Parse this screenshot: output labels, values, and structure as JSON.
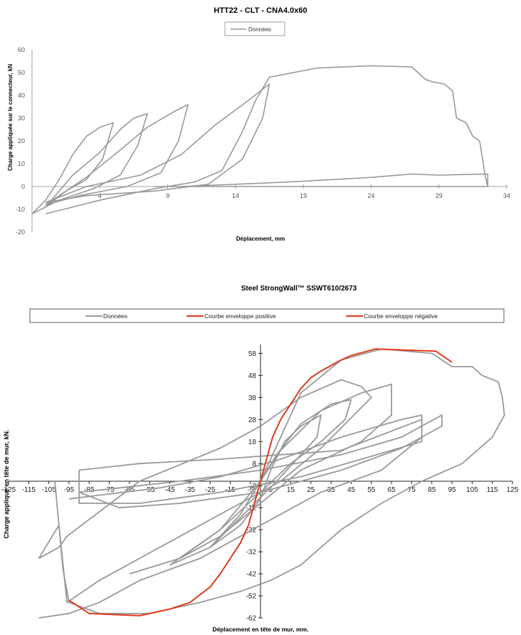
{
  "chart_data": [
    {
      "type": "line",
      "title": "HTT22 - CLT - CNA4.0x60",
      "xlabel": "Déplacement, mm",
      "ylabel": "Charge appliquée sur le connecteur, kN",
      "xlim": [
        -1,
        34
      ],
      "ylim": [
        -20,
        60
      ],
      "x_ticks": [
        4,
        9,
        14,
        19,
        24,
        29,
        34
      ],
      "x_tick_labels": [
        "4",
        "9",
        "14",
        "19",
        "24",
        "29",
        "34"
      ],
      "y_ticks": [
        -20,
        -10,
        0,
        10,
        20,
        30,
        40,
        50,
        60
      ],
      "y_tick_labels": [
        "-20",
        "-10",
        "0",
        "10",
        "20",
        "30",
        "40",
        "50",
        "60"
      ],
      "legend": "top-center",
      "series": [
        {
          "name": "Données",
          "color": "#999999",
          "loops": [
            [
              [
                -1,
                -12
              ],
              [
                0,
                -6
              ],
              [
                1,
                3
              ],
              [
                2,
                14
              ],
              [
                3,
                22
              ],
              [
                4,
                26
              ],
              [
                5,
                28
              ],
              [
                4.2,
                12
              ],
              [
                3,
                3
              ],
              [
                1.5,
                -2
              ],
              [
                0,
                -9
              ],
              [
                -1,
                -12
              ]
            ],
            [
              [
                0,
                -9
              ],
              [
                2,
                5
              ],
              [
                4,
                15
              ],
              [
                5.5,
                25
              ],
              [
                6.5,
                30
              ],
              [
                7.5,
                32
              ],
              [
                6.8,
                18
              ],
              [
                5.5,
                5
              ],
              [
                3.5,
                -1
              ],
              [
                1,
                -6
              ],
              [
                0,
                -9
              ]
            ],
            [
              [
                0,
                -8
              ],
              [
                3,
                4
              ],
              [
                5.5,
                16
              ],
              [
                7.5,
                26
              ],
              [
                9.5,
                33
              ],
              [
                10.5,
                36
              ],
              [
                9.8,
                20
              ],
              [
                8.5,
                6
              ],
              [
                6,
                0
              ],
              [
                2.5,
                -4
              ],
              [
                0,
                -8
              ]
            ],
            [
              [
                0,
                -7
              ],
              [
                3,
                0
              ],
              [
                7,
                5
              ],
              [
                10,
                14
              ],
              [
                12.5,
                27
              ],
              [
                15,
                38
              ],
              [
                16.5,
                45
              ],
              [
                16,
                30
              ],
              [
                14.5,
                12
              ],
              [
                12,
                1
              ],
              [
                8,
                -2
              ],
              [
                3,
                -4
              ],
              [
                0,
                -7
              ]
            ],
            [
              [
                0,
                -12
              ],
              [
                4,
                -6
              ],
              [
                8,
                -1
              ],
              [
                11,
                2
              ],
              [
                13,
                7
              ],
              [
                14.5,
                24
              ],
              [
                15.5,
                38
              ],
              [
                16.5,
                48
              ],
              [
                20,
                52
              ],
              [
                24,
                53
              ],
              [
                27,
                52.5
              ],
              [
                28,
                47
              ],
              [
                28.5,
                46
              ],
              [
                29.4,
                45
              ],
              [
                30,
                42
              ],
              [
                30.3,
                30
              ],
              [
                31,
                28
              ],
              [
                31.5,
                22
              ],
              [
                32,
                20
              ],
              [
                32.4,
                5
              ],
              [
                32.6,
                0
              ],
              [
                29,
                0
              ],
              [
                20,
                0
              ],
              [
                8,
                0
              ]
            ],
            [
              [
                10,
                0
              ],
              [
                18,
                2
              ],
              [
                24,
                4
              ],
              [
                27,
                5.5
              ],
              [
                29,
                5
              ],
              [
                32.6,
                5.5
              ],
              [
                32.6,
                0
              ]
            ]
          ]
        }
      ]
    },
    {
      "type": "line",
      "title": "Steel StrongWall™ SSWT610/2673",
      "xlabel": "Déplacement en tête de mur, mm.",
      "ylabel": "Charge appliqué en tête de mur, kN.",
      "xlim": [
        -125,
        125
      ],
      "ylim": [
        -62,
        62
      ],
      "x_ticks": [
        -125,
        -115,
        -105,
        -95,
        -85,
        -75,
        -65,
        -55,
        -45,
        -35,
        -25,
        -15,
        -5,
        5,
        15,
        25,
        35,
        45,
        55,
        65,
        75,
        85,
        95,
        105,
        115,
        125
      ],
      "x_tick_labels": [
        "-125",
        "-115",
        "-105",
        "-95",
        "-85",
        "-75",
        "-65",
        "-55",
        "-45",
        "-35",
        "-25",
        "-15",
        "-5",
        "5",
        "15",
        "25",
        "35",
        "45",
        "55",
        "65",
        "75",
        "85",
        "95",
        "105",
        "115",
        "125"
      ],
      "y_ticks": [
        58,
        48,
        38,
        28,
        18,
        8,
        -2,
        -12,
        -22,
        -32,
        -42,
        -52,
        -62
      ],
      "y_tick_labels": [
        "58",
        "48",
        "38",
        "28",
        "18",
        "8",
        "-2",
        "-12",
        "-22",
        "-32",
        "-42",
        "-52",
        "-62"
      ],
      "legend": "top",
      "series": [
        {
          "name": "Données",
          "color": "#999999",
          "loops": [
            [
              [
                -110,
                -35
              ],
              [
                -100,
                -30
              ],
              [
                -96,
                -25
              ],
              [
                -60,
                0
              ],
              [
                -20,
                15
              ],
              [
                0,
                25
              ],
              [
                20,
                38
              ],
              [
                40,
                46
              ],
              [
                50,
                43
              ],
              [
                55,
                38
              ],
              [
                30,
                15
              ],
              [
                10,
                0
              ],
              [
                -10,
                -10
              ],
              [
                -40,
                -25
              ],
              [
                -80,
                -45
              ],
              [
                -96,
                -55
              ],
              [
                -100,
                -20
              ],
              [
                -110,
                -35
              ]
            ],
            [
              [
                -95,
                -8
              ],
              [
                -50,
                -3
              ],
              [
                -20,
                2
              ],
              [
                10,
                10
              ],
              [
                40,
                20
              ],
              [
                70,
                28
              ],
              [
                80,
                30
              ],
              [
                80,
                20
              ],
              [
                60,
                5
              ],
              [
                30,
                -5
              ],
              [
                0,
                -20
              ],
              [
                -30,
                -35
              ],
              [
                -60,
                -45
              ],
              [
                -80,
                -55
              ],
              [
                -95,
                -60
              ],
              [
                -110,
                -62
              ]
            ],
            [
              [
                -65,
                -42
              ],
              [
                -40,
                -35
              ],
              [
                -20,
                -22
              ],
              [
                0,
                0
              ],
              [
                10,
                14
              ],
              [
                30,
                32
              ],
              [
                50,
                40
              ],
              [
                65,
                44
              ],
              [
                65,
                30
              ],
              [
                50,
                18
              ],
              [
                20,
                5
              ],
              [
                0,
                -10
              ],
              [
                -20,
                -25
              ],
              [
                -40,
                -35
              ],
              [
                -65,
                -42
              ]
            ],
            [
              [
                -45,
                -38
              ],
              [
                -25,
                -30
              ],
              [
                -10,
                -15
              ],
              [
                0,
                0
              ],
              [
                8,
                12
              ],
              [
                20,
                26
              ],
              [
                35,
                35
              ],
              [
                45,
                37
              ],
              [
                42,
                28
              ],
              [
                30,
                18
              ],
              [
                15,
                8
              ],
              [
                0,
                -5
              ],
              [
                -20,
                -22
              ],
              [
                -45,
                -38
              ]
            ],
            [
              [
                -25,
                -30
              ],
              [
                -10,
                -20
              ],
              [
                0,
                -8
              ],
              [
                5,
                5
              ],
              [
                12,
                18
              ],
              [
                20,
                25
              ],
              [
                30,
                30
              ],
              [
                28,
                20
              ],
              [
                18,
                10
              ],
              [
                8,
                0
              ],
              [
                -5,
                -12
              ],
              [
                -25,
                -30
              ]
            ],
            [
              [
                -90,
                5
              ],
              [
                -60,
                8
              ],
              [
                -20,
                10
              ],
              [
                10,
                12
              ],
              [
                40,
                14
              ],
              [
                80,
                28
              ],
              [
                80,
                18
              ],
              [
                50,
                10
              ],
              [
                20,
                2
              ],
              [
                -20,
                -5
              ],
              [
                -60,
                -10
              ],
              [
                -90,
                -10
              ],
              [
                -90,
                5
              ]
            ],
            [
              [
                0,
                0
              ],
              [
                20,
                40
              ],
              [
                40,
                55
              ],
              [
                60,
                60
              ],
              [
                85,
                58
              ],
              [
                95,
                52
              ],
              [
                105,
                52
              ],
              [
                110,
                48
              ],
              [
                118,
                45
              ],
              [
                120,
                38
              ],
              [
                121,
                30
              ],
              [
                115,
                20
              ],
              [
                100,
                8
              ],
              [
                80,
                0
              ],
              [
                60,
                -10
              ],
              [
                40,
                -22
              ],
              [
                20,
                -38
              ],
              [
                5,
                -45
              ],
              [
                -10,
                -50
              ],
              [
                -30,
                -55
              ],
              [
                -55,
                -60
              ],
              [
                -80,
                -60
              ],
              [
                -95,
                -55
              ],
              [
                -98,
                -40
              ],
              [
                -100,
                -20
              ],
              [
                -102,
                0
              ]
            ],
            [
              [
                -90,
                -5
              ],
              [
                -70,
                -3
              ],
              [
                -40,
                0
              ],
              [
                0,
                5
              ],
              [
                40,
                12
              ],
              [
                70,
                20
              ],
              [
                90,
                30
              ],
              [
                90,
                25
              ],
              [
                70,
                15
              ],
              [
                40,
                5
              ],
              [
                0,
                -5
              ],
              [
                -40,
                -10
              ],
              [
                -70,
                -12
              ],
              [
                -90,
                -5
              ]
            ]
          ]
        },
        {
          "name": "Courbe enveloppe positive",
          "color": "#e03a1c",
          "points": [
            [
              0,
              0
            ],
            [
              3,
              10
            ],
            [
              6,
              20
            ],
            [
              10,
              28
            ],
            [
              15,
              35
            ],
            [
              20,
              42
            ],
            [
              25,
              47
            ],
            [
              30,
              50
            ],
            [
              40,
              55
            ],
            [
              45,
              57
            ],
            [
              57,
              60
            ],
            [
              87,
              59
            ],
            [
              95,
              54
            ]
          ]
        },
        {
          "name": "Courbe enveloppe négative",
          "color": "#e03a1c",
          "points": [
            [
              0,
              0
            ],
            [
              -3,
              -10
            ],
            [
              -6,
              -20
            ],
            [
              -10,
              -28
            ],
            [
              -15,
              -35
            ],
            [
              -20,
              -42
            ],
            [
              -25,
              -48
            ],
            [
              -35,
              -55
            ],
            [
              -45,
              -58
            ],
            [
              -60,
              -61
            ],
            [
              -85,
              -60
            ],
            [
              -95,
              -54
            ]
          ]
        }
      ]
    }
  ]
}
